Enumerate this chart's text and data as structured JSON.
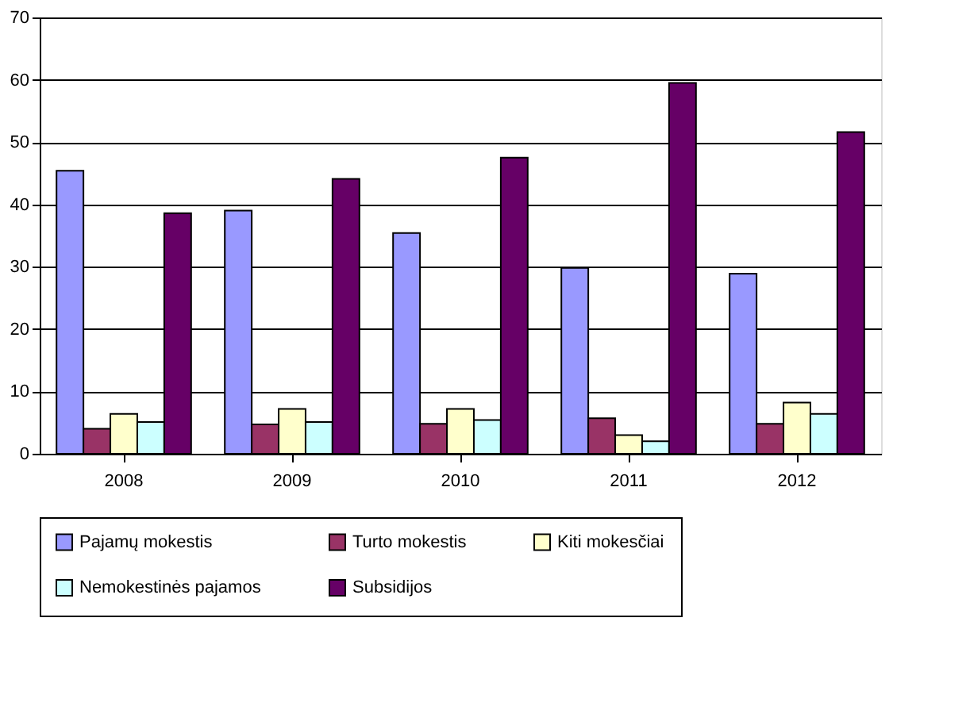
{
  "chart_data": {
    "type": "bar",
    "categories": [
      "2008",
      "2009",
      "2010",
      "2011",
      "2012"
    ],
    "series": [
      {
        "name": "Pajamų mokestis",
        "color": "#9999ff",
        "values": [
          45.4,
          39.0,
          35.4,
          29.8,
          28.9
        ]
      },
      {
        "name": "Turto mokestis",
        "color": "#993366",
        "values": [
          4.0,
          4.7,
          4.8,
          5.7,
          4.8
        ]
      },
      {
        "name": "Kiti mokesčiai",
        "color": "#ffffcc",
        "values": [
          6.4,
          7.2,
          7.2,
          3.0,
          8.2
        ]
      },
      {
        "name": "Nemokestinės pajamos",
        "color": "#ccffff",
        "values": [
          5.1,
          5.1,
          5.4,
          2.0,
          6.4
        ]
      },
      {
        "name": "Subsidijos",
        "color": "#660066",
        "values": [
          38.6,
          44.1,
          47.5,
          59.5,
          51.6
        ]
      }
    ],
    "ylim": [
      0,
      70
    ],
    "yticks": [
      0,
      10,
      20,
      30,
      40,
      50,
      60,
      70
    ],
    "grid": "y",
    "legend": "bottom"
  }
}
